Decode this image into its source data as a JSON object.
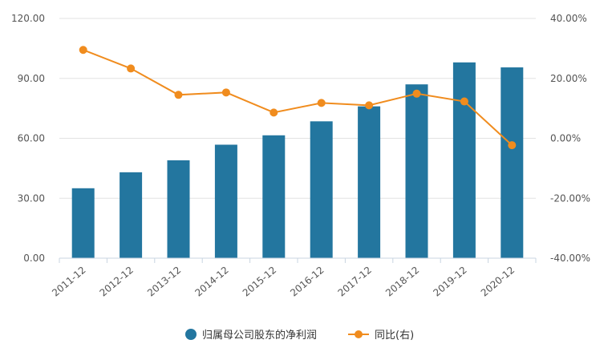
{
  "chart_data": {
    "type": "bar",
    "categories": [
      "2011-12",
      "2012-12",
      "2013-12",
      "2014-12",
      "2015-12",
      "2016-12",
      "2017-12",
      "2018-12",
      "2019-12",
      "2020-12"
    ],
    "series": [
      {
        "name": "归属母公司股东的净利润",
        "type": "bar",
        "axis": "left",
        "values": [
          35.0,
          43.0,
          49.0,
          56.8,
          61.5,
          68.5,
          76.0,
          87.0,
          98.0,
          95.5
        ]
      },
      {
        "name": "同比(右)",
        "type": "line",
        "axis": "right",
        "values": [
          29.5,
          23.3,
          14.5,
          15.3,
          8.6,
          11.8,
          11.0,
          14.9,
          12.3,
          -2.3
        ]
      }
    ],
    "y_left": {
      "ticks": [
        "0.00",
        "30.00",
        "60.00",
        "90.00",
        "120.00"
      ],
      "ylim": [
        0,
        120
      ]
    },
    "y_right": {
      "ticks": [
        "-40.00%",
        "-20.00%",
        "0.00%",
        "20.00%",
        "40.00%"
      ],
      "ylim": [
        -40,
        40
      ]
    },
    "grid": true,
    "legend_position": "bottom",
    "colors": {
      "bar": "#23769f",
      "line": "#f08c1e",
      "grid": "#e2e2e2",
      "axis": "#c8d4e0"
    }
  }
}
